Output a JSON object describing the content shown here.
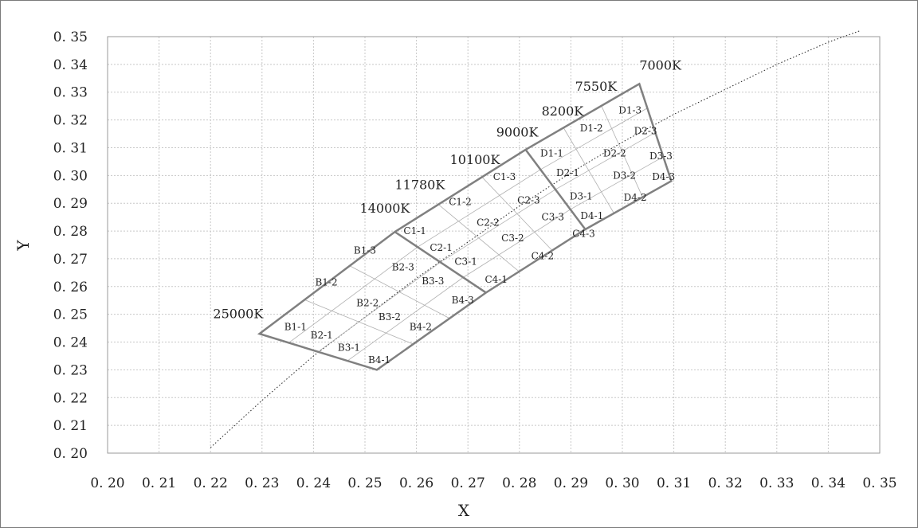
{
  "chart_data": {
    "type": "line",
    "title": "",
    "xlabel": "X",
    "ylabel": "Y",
    "xlim": [
      0.2,
      0.35
    ],
    "ylim": [
      0.2,
      0.35
    ],
    "grid": true,
    "x_ticks": [
      "0. 20",
      "0. 21",
      "0. 22",
      "0. 23",
      "0. 24",
      "0. 25",
      "0. 26",
      "0. 27",
      "0. 28",
      "0. 29",
      "0. 30",
      "0. 31",
      "0. 32",
      "0. 33",
      "0. 34",
      "0. 35"
    ],
    "y_ticks": [
      "0. 20",
      "0. 21",
      "0. 22",
      "0. 23",
      "0. 24",
      "0. 25",
      "0. 26",
      "0. 27",
      "0. 28",
      "0. 29",
      "0. 30",
      "0. 31",
      "0. 32",
      "0. 33",
      "0. 34",
      "0. 35"
    ],
    "tick_values": [
      0.2,
      0.21,
      0.22,
      0.23,
      0.24,
      0.25,
      0.26,
      0.27,
      0.28,
      0.29,
      0.3,
      0.31,
      0.32,
      0.33,
      0.34,
      0.35
    ],
    "colors": {
      "outline": "#808080",
      "inner_grid": "#b0b0b0",
      "locus": "#222222",
      "gridline": "#c8c8c8"
    },
    "locus_points": [
      [
        0.22,
        0.202
      ],
      [
        0.23,
        0.219
      ],
      [
        0.24,
        0.235
      ],
      [
        0.25,
        0.249
      ],
      [
        0.26,
        0.263
      ],
      [
        0.27,
        0.276
      ],
      [
        0.28,
        0.289
      ],
      [
        0.29,
        0.301
      ],
      [
        0.3,
        0.312
      ],
      [
        0.31,
        0.322
      ],
      [
        0.32,
        0.331
      ],
      [
        0.33,
        0.34
      ],
      [
        0.34,
        0.348
      ],
      [
        0.346,
        0.352
      ]
    ],
    "region": {
      "top_edge": [
        [
          0.2295,
          0.243
        ],
        [
          0.2558,
          0.2797
        ],
        [
          0.2812,
          0.3093
        ],
        [
          0.3033,
          0.333
        ]
      ],
      "bottom_edge": [
        [
          0.2523,
          0.23
        ],
        [
          0.2735,
          0.2578
        ],
        [
          0.2928,
          0.2806
        ],
        [
          0.3095,
          0.298
        ]
      ]
    },
    "cct_labels": [
      {
        "text": "25000K",
        "x": 0.2205,
        "y": 0.25
      },
      {
        "text": "14000K",
        "x": 0.249,
        "y": 0.288
      },
      {
        "text": "11780K",
        "x": 0.2558,
        "y": 0.2965
      },
      {
        "text": "10100K",
        "x": 0.2665,
        "y": 0.3055
      },
      {
        "text": "9000K",
        "x": 0.2755,
        "y": 0.3155
      },
      {
        "text": "8200K",
        "x": 0.2843,
        "y": 0.323
      },
      {
        "text": "7550K",
        "x": 0.2908,
        "y": 0.332
      },
      {
        "text": "7000K",
        "x": 0.3033,
        "y": 0.3395
      }
    ],
    "bin_labels": [
      {
        "text": "B1-1",
        "x": 0.2365,
        "y": 0.2455
      },
      {
        "text": "B2-1",
        "x": 0.2416,
        "y": 0.2425
      },
      {
        "text": "B3-1",
        "x": 0.2469,
        "y": 0.238
      },
      {
        "text": "B4-1",
        "x": 0.2528,
        "y": 0.2335
      },
      {
        "text": "B1-2",
        "x": 0.2425,
        "y": 0.2615
      },
      {
        "text": "B2-2",
        "x": 0.2505,
        "y": 0.254
      },
      {
        "text": "B3-2",
        "x": 0.2548,
        "y": 0.249
      },
      {
        "text": "B4-2",
        "x": 0.2608,
        "y": 0.2455
      },
      {
        "text": "B1-3",
        "x": 0.25,
        "y": 0.273
      },
      {
        "text": "B2-3",
        "x": 0.2574,
        "y": 0.267
      },
      {
        "text": "B3-3",
        "x": 0.2632,
        "y": 0.262
      },
      {
        "text": "B4-3",
        "x": 0.269,
        "y": 0.255
      },
      {
        "text": "C1-1",
        "x": 0.2597,
        "y": 0.28
      },
      {
        "text": "C2-1",
        "x": 0.2648,
        "y": 0.274
      },
      {
        "text": "C3-1",
        "x": 0.2696,
        "y": 0.269
      },
      {
        "text": "C4-1",
        "x": 0.2755,
        "y": 0.2625
      },
      {
        "text": "C1-2",
        "x": 0.2685,
        "y": 0.2905
      },
      {
        "text": "C2-2",
        "x": 0.2739,
        "y": 0.283
      },
      {
        "text": "C3-2",
        "x": 0.2787,
        "y": 0.2775
      },
      {
        "text": "C4-2",
        "x": 0.2845,
        "y": 0.271
      },
      {
        "text": "C1-3",
        "x": 0.2771,
        "y": 0.2995
      },
      {
        "text": "C2-3",
        "x": 0.2818,
        "y": 0.291
      },
      {
        "text": "C3-3",
        "x": 0.2865,
        "y": 0.285
      },
      {
        "text": "C4-3",
        "x": 0.2925,
        "y": 0.279
      },
      {
        "text": "D1-1",
        "x": 0.2863,
        "y": 0.308
      },
      {
        "text": "D2-1",
        "x": 0.2894,
        "y": 0.301
      },
      {
        "text": "D3-1",
        "x": 0.292,
        "y": 0.2925
      },
      {
        "text": "D4-1",
        "x": 0.2941,
        "y": 0.2855
      },
      {
        "text": "D1-2",
        "x": 0.294,
        "y": 0.317
      },
      {
        "text": "D2-2",
        "x": 0.2985,
        "y": 0.308
      },
      {
        "text": "D3-2",
        "x": 0.3004,
        "y": 0.3
      },
      {
        "text": "D4-2",
        "x": 0.3025,
        "y": 0.292
      },
      {
        "text": "D1-3",
        "x": 0.3015,
        "y": 0.3235
      },
      {
        "text": "D2-3",
        "x": 0.3045,
        "y": 0.316
      },
      {
        "text": "D3-3",
        "x": 0.3075,
        "y": 0.307
      },
      {
        "text": "D4-3",
        "x": 0.308,
        "y": 0.2995
      }
    ]
  }
}
